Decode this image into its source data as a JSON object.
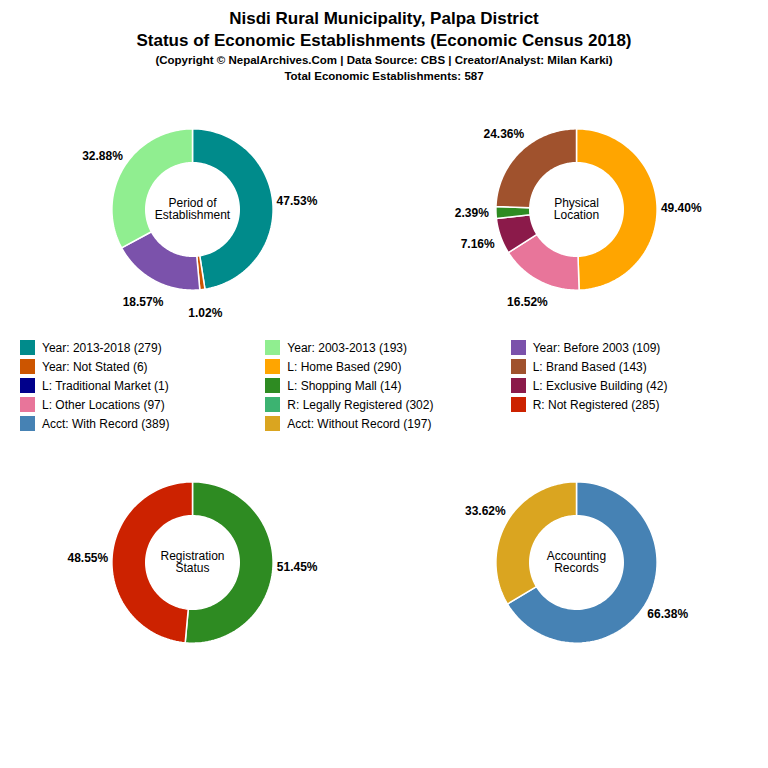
{
  "title": [
    "Nisdi Rural Municipality, Palpa District",
    "Status of Economic Establishments (Economic Census 2018)"
  ],
  "subtitle": [
    "(Copyright © NepalArchives.Com | Data Source: CBS | Creator/Analyst: Milan Karki)",
    "Total Economic Establishments: 587"
  ],
  "legend_items": [
    {
      "name": "Year: 2013-2018 (279)",
      "color": "#008B8B"
    },
    {
      "name": "Year: 2003-2013 (193)",
      "color": "#90EE90"
    },
    {
      "name": "Year: Before 2003 (109)",
      "color": "#7B52AB"
    },
    {
      "name": "Year: Not Stated (6)",
      "color": "#CC5500"
    },
    {
      "name": "L: Home Based (290)",
      "color": "#FFA500"
    },
    {
      "name": "L: Brand Based (143)",
      "color": "#A0522D"
    },
    {
      "name": "L: Traditional Market (1)",
      "color": "#00008B"
    },
    {
      "name": "L: Shopping Mall (14)",
      "color": "#2E8B22"
    },
    {
      "name": "L: Exclusive Building (42)",
      "color": "#8B1A4A"
    },
    {
      "name": "L: Other Locations (97)",
      "color": "#E8759A"
    },
    {
      "name": "R: Legally Registered (302)",
      "color": "#3CB371"
    },
    {
      "name": "R: Not Registered (285)",
      "color": "#CC2200"
    },
    {
      "name": "Acct: With Record (389)",
      "color": "#4682B4"
    },
    {
      "name": "Acct: Without Record (197)",
      "color": "#DAA520"
    }
  ],
  "chart_data": [
    {
      "type": "pie",
      "label": "Period of\nEstablishment",
      "values": [
        47.53,
        1.02,
        18.57,
        32.88
      ],
      "value_labels": [
        "47.53%",
        "1.02%",
        "18.57%",
        "32.88%"
      ],
      "colors": [
        "#008B8B",
        "#CC5500",
        "#7B52AB",
        "#90EE90"
      ],
      "data_labels": true
    },
    {
      "type": "pie",
      "label": "Physical\nLocation",
      "values": [
        49.4,
        16.52,
        7.16,
        2.39,
        24.36
      ],
      "value_labels": [
        "49.40%",
        "16.52%",
        "7.16%",
        "2.39%",
        "24.36%"
      ],
      "colors": [
        "#FFA500",
        "#E8759A",
        "#8B1A4A",
        "#2E8B22",
        "#A0522D"
      ],
      "data_labels": true
    },
    {
      "type": "pie",
      "label": "Registration\nStatus",
      "values": [
        51.45,
        48.55
      ],
      "value_labels": [
        "51.45%",
        "48.55%"
      ],
      "colors": [
        "#2E8B22",
        "#CC2200"
      ],
      "data_labels": true
    },
    {
      "type": "pie",
      "label": "Accounting\nRecords",
      "values": [
        66.38,
        33.62
      ],
      "value_labels": [
        "66.38%",
        "33.62%"
      ],
      "colors": [
        "#4682B4",
        "#DAA520"
      ],
      "data_labels": true
    }
  ]
}
